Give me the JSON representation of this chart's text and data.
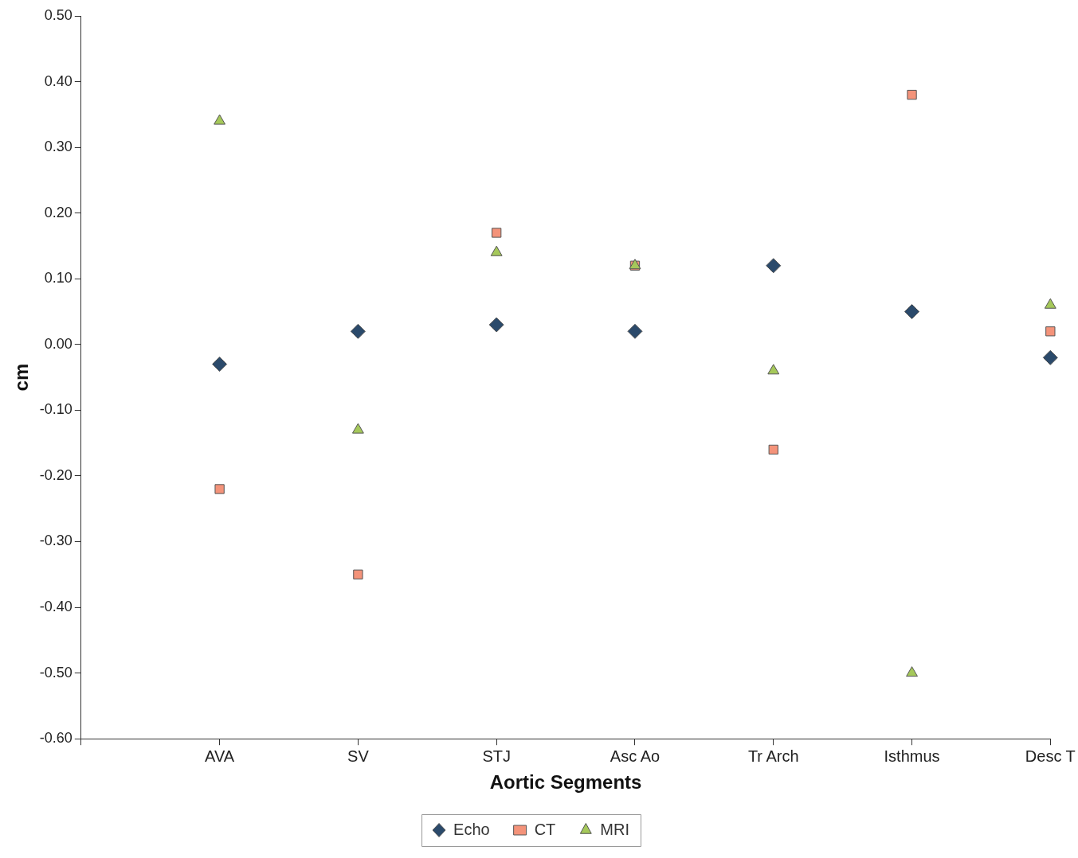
{
  "chart_data": {
    "type": "scatter",
    "xlabel": "Aortic Segments",
    "ylabel": "cm",
    "categories": [
      "AVA",
      "SV",
      "STJ",
      "Asc Ao",
      "Tr Arch",
      "Isthmus",
      "Desc T"
    ],
    "series": [
      {
        "name": "Echo",
        "color": "#2b4a6b",
        "marker": "diamond",
        "values": [
          -0.03,
          0.02,
          0.03,
          0.02,
          0.12,
          0.05,
          -0.02
        ]
      },
      {
        "name": "CT",
        "color": "#f4937a",
        "marker": "square",
        "values": [
          -0.22,
          -0.35,
          0.17,
          0.12,
          -0.16,
          0.38,
          0.02
        ]
      },
      {
        "name": "MRI",
        "color": "#a5c85a",
        "marker": "triangle",
        "values": [
          0.34,
          -0.13,
          0.14,
          0.12,
          -0.04,
          -0.5,
          0.06
        ]
      }
    ],
    "ylim": [
      -0.6,
      0.5
    ],
    "yticks": [
      {
        "value": -0.6,
        "label": "-0.60"
      },
      {
        "value": -0.5,
        "label": "-0.50"
      },
      {
        "value": -0.4,
        "label": "-0.40"
      },
      {
        "value": -0.3,
        "label": "-0.30"
      },
      {
        "value": -0.2,
        "label": "-0.20"
      },
      {
        "value": -0.1,
        "label": "-0.10"
      },
      {
        "value": 0,
        "label": "0.00"
      },
      {
        "value": 0.1,
        "label": "0.10"
      },
      {
        "value": 0.2,
        "label": "0.20"
      },
      {
        "value": 0.3,
        "label": "0.30"
      },
      {
        "value": 0.4,
        "label": "0.40"
      },
      {
        "value": 0.5,
        "label": "0.50"
      }
    ],
    "grid": false,
    "legend": "bottom"
  }
}
